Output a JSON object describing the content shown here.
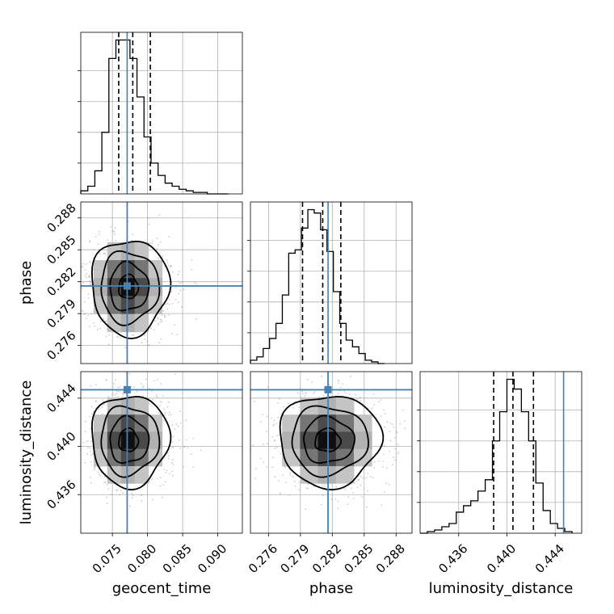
{
  "colors": {
    "truth": "#4682b4",
    "hist": "#000000",
    "grid": "#b0b0b0",
    "scatter": "#9a9a9a"
  },
  "chart_data": {
    "type": "corner",
    "parameters": [
      "geocent_time",
      "phase",
      "luminosity_distance"
    ],
    "truths": [
      0.0771,
      0.2816,
      0.4447
    ],
    "ranges": [
      [
        0.0705,
        0.0935
      ],
      [
        0.2743,
        0.2895
      ],
      [
        0.4328,
        0.4462
      ]
    ],
    "ticks": [
      [
        "0.075",
        "0.080",
        "0.085",
        "0.090"
      ],
      [
        "0.276",
        "0.279",
        "0.282",
        "0.285",
        "0.288"
      ],
      [
        "0.436",
        "0.440",
        "0.444"
      ]
    ],
    "grid": true,
    "diagonal": [
      {
        "parameter": "geocent_time",
        "bin_edges": [
          0.0705,
          0.0715,
          0.0725,
          0.0735,
          0.0745,
          0.0755,
          0.0765,
          0.0775,
          0.0785,
          0.0795,
          0.0805,
          0.0815,
          0.0825,
          0.0835,
          0.0845,
          0.0855,
          0.0865,
          0.0875,
          0.0885,
          0.0895,
          0.0905,
          0.0915
        ],
        "counts": [
          2,
          5,
          15,
          40,
          88,
          100,
          100,
          88,
          63,
          37,
          20,
          12,
          7,
          5,
          3,
          2,
          1,
          1,
          0,
          0,
          0
        ],
        "quantiles": [
          0.0759,
          0.0779,
          0.0804
        ]
      },
      {
        "parameter": "phase",
        "bin_edges": [
          0.2743,
          0.2749,
          0.2755,
          0.2761,
          0.2767,
          0.2773,
          0.2779,
          0.2785,
          0.2791,
          0.2797,
          0.2803,
          0.2809,
          0.2815,
          0.2821,
          0.2827,
          0.2833,
          0.2839,
          0.2845,
          0.2851,
          0.2857,
          0.2863,
          0.2869
        ],
        "counts": [
          2,
          4,
          9,
          15,
          24,
          41,
          66,
          68,
          81,
          92,
          90,
          80,
          67,
          43,
          24,
          14,
          10,
          6,
          2,
          1,
          0
        ],
        "quantiles": [
          0.2792,
          0.2811,
          0.2828
        ]
      },
      {
        "parameter": "luminosity_distance",
        "bin_edges": [
          0.4328,
          0.4334,
          0.434,
          0.4346,
          0.4352,
          0.4358,
          0.4364,
          0.437,
          0.4376,
          0.4382,
          0.4388,
          0.4394,
          0.44,
          0.4406,
          0.4412,
          0.4418,
          0.4424,
          0.443,
          0.4436,
          0.4442,
          0.4448,
          0.4454
        ],
        "counts": [
          0,
          1,
          2,
          4,
          6,
          13,
          17,
          20,
          26,
          33,
          57,
          75,
          95,
          89,
          75,
          57,
          31,
          14,
          6,
          3,
          1
        ],
        "quantiles": [
          0.4389,
          0.4405,
          0.4422
        ]
      }
    ],
    "pairs": [
      {
        "x": "geocent_time",
        "y": "phase",
        "mean": [
          0.0772,
          0.2815
        ],
        "std": [
          0.0026,
          0.00225
        ],
        "contour_levels_sigma": [
          0.5,
          1.0,
          1.5,
          2.0
        ]
      },
      {
        "x": "geocent_time",
        "y": "luminosity_distance",
        "mean": [
          0.0772,
          0.4405
        ],
        "std": [
          0.0026,
          0.0019
        ],
        "contour_levels_sigma": [
          0.5,
          1.0,
          1.5,
          2.0
        ]
      },
      {
        "x": "phase",
        "y": "luminosity_distance",
        "mean": [
          0.2815,
          0.4405
        ],
        "std": [
          0.00225,
          0.0019
        ],
        "contour_levels_sigma": [
          0.5,
          1.0,
          1.5,
          2.0
        ]
      }
    ]
  }
}
